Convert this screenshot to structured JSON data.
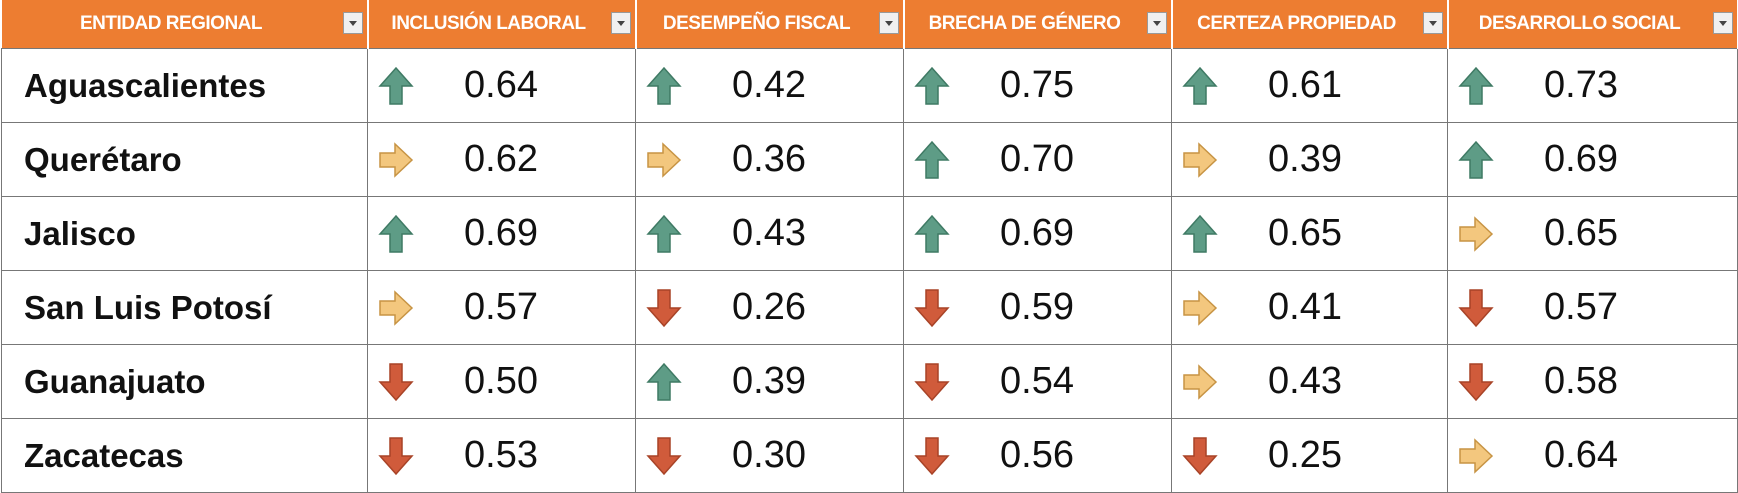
{
  "table": {
    "headers": [
      "ENTIDAD REGIONAL",
      "INCLUSIÓN LABORAL",
      "DESEMPEÑO FISCAL",
      "BRECHA DE GÉNERO",
      "CERTEZA PROPIEDAD",
      "DESARROLLO SOCIAL"
    ],
    "rows": [
      [
        "Aguascalientes",
        {
          "value": "0.64",
          "icon": "up"
        },
        {
          "value": "0.42",
          "icon": "up"
        },
        {
          "value": "0.75",
          "icon": "up"
        },
        {
          "value": "0.61",
          "icon": "up"
        },
        {
          "value": "0.73",
          "icon": "up"
        }
      ],
      [
        "Querétaro",
        {
          "value": "0.62",
          "icon": "right"
        },
        {
          "value": "0.36",
          "icon": "right"
        },
        {
          "value": "0.70",
          "icon": "up"
        },
        {
          "value": "0.39",
          "icon": "right"
        },
        {
          "value": "0.69",
          "icon": "up"
        }
      ],
      [
        "Jalisco",
        {
          "value": "0.69",
          "icon": "up"
        },
        {
          "value": "0.43",
          "icon": "up"
        },
        {
          "value": "0.69",
          "icon": "up"
        },
        {
          "value": "0.65",
          "icon": "up"
        },
        {
          "value": "0.65",
          "icon": "right"
        }
      ],
      [
        "San Luis Potosí",
        {
          "value": "0.57",
          "icon": "right"
        },
        {
          "value": "0.26",
          "icon": "down"
        },
        {
          "value": "0.59",
          "icon": "down"
        },
        {
          "value": "0.41",
          "icon": "right"
        },
        {
          "value": "0.57",
          "icon": "down"
        }
      ],
      [
        "Guanajuato",
        {
          "value": "0.50",
          "icon": "down"
        },
        {
          "value": "0.39",
          "icon": "up"
        },
        {
          "value": "0.54",
          "icon": "down"
        },
        {
          "value": "0.43",
          "icon": "right"
        },
        {
          "value": "0.58",
          "icon": "down"
        }
      ],
      [
        "Zacatecas",
        {
          "value": "0.53",
          "icon": "down"
        },
        {
          "value": "0.30",
          "icon": "down"
        },
        {
          "value": "0.56",
          "icon": "down"
        },
        {
          "value": "0.25",
          "icon": "down"
        },
        {
          "value": "0.64",
          "icon": "right"
        }
      ]
    ]
  }
}
